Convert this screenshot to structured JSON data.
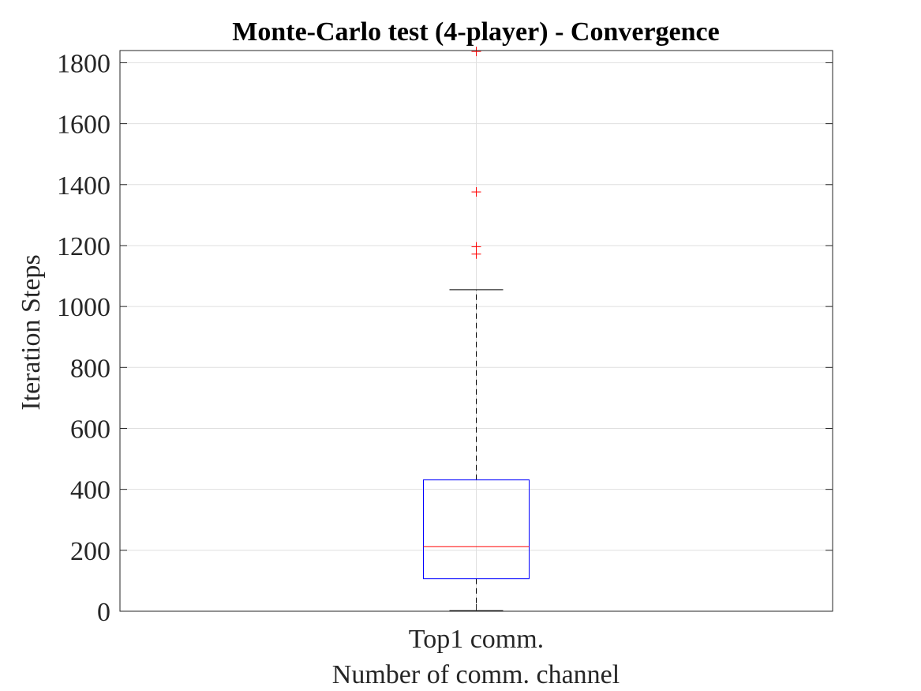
{
  "chart_data": {
    "type": "box",
    "title": "Monte-Carlo test (4-player) - Convergence",
    "xlabel": "Number of comm. channel",
    "ylabel": "Iteration Steps",
    "ylim": [
      0,
      1840
    ],
    "yticks": [
      0,
      200,
      400,
      600,
      800,
      1000,
      1200,
      1400,
      1600,
      1800
    ],
    "grid": true,
    "categories": [
      "Top1 comm."
    ],
    "boxes": [
      {
        "category": "Top1 comm.",
        "whisker_low": 2,
        "q1": 107,
        "median": 212,
        "q3": 431,
        "whisker_high": 1055,
        "outliers": [
          1172,
          1196,
          1376,
          1837
        ]
      }
    ],
    "colors": {
      "box": "#0000ff",
      "median": "#ff0000",
      "whisker": "#000000",
      "outlier": "#ff0000",
      "grid": "#dfdfdf",
      "axes": "#262626"
    }
  }
}
